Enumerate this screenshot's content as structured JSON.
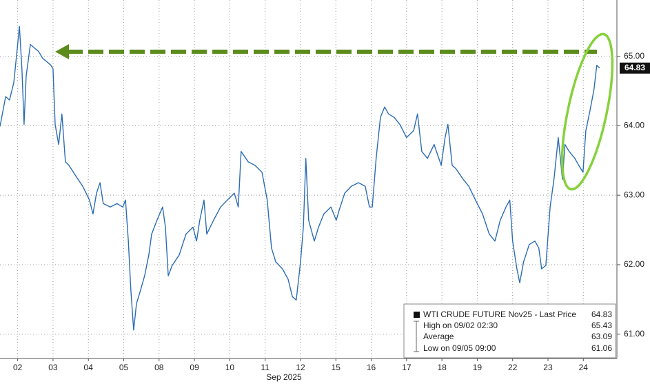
{
  "chart_data": {
    "type": "line",
    "xlabel": "Sep 2025",
    "xlim": [
      0,
      17.45
    ],
    "ylim": [
      60.65,
      65.81
    ],
    "grid": true,
    "xticks": [
      {
        "value": 0.5,
        "label": "02"
      },
      {
        "value": 1.5,
        "label": "03"
      },
      {
        "value": 2.5,
        "label": "04"
      },
      {
        "value": 3.5,
        "label": "05"
      },
      {
        "value": 4.5,
        "label": "08"
      },
      {
        "value": 5.5,
        "label": "09"
      },
      {
        "value": 6.5,
        "label": "10"
      },
      {
        "value": 7.5,
        "label": "11"
      },
      {
        "value": 8.5,
        "label": "12"
      },
      {
        "value": 9.5,
        "label": "15"
      },
      {
        "value": 10.5,
        "label": "16"
      },
      {
        "value": 11.5,
        "label": "17"
      },
      {
        "value": 12.5,
        "label": "18"
      },
      {
        "value": 13.5,
        "label": "19"
      },
      {
        "value": 14.5,
        "label": "22"
      },
      {
        "value": 15.5,
        "label": "23"
      },
      {
        "value": 16.5,
        "label": "24"
      }
    ],
    "yticks": [
      {
        "value": 61,
        "label": "61.00"
      },
      {
        "value": 62,
        "label": "62.00"
      },
      {
        "value": 63,
        "label": "63.00"
      },
      {
        "value": 64,
        "label": "64.00"
      },
      {
        "value": 65,
        "label": "65.00"
      }
    ],
    "series": [
      {
        "name": "WTI CRUDE FUTURE Nov25 - Last Price",
        "color": "#2b6cb3",
        "x": [
          0.0,
          0.16,
          0.27,
          0.39,
          0.47,
          0.55,
          0.62,
          0.68,
          0.74,
          0.86,
          0.97,
          1.09,
          1.21,
          1.33,
          1.44,
          1.5,
          1.56,
          1.66,
          1.75,
          1.85,
          1.95,
          2.14,
          2.34,
          2.53,
          2.63,
          2.73,
          2.83,
          2.92,
          3.12,
          3.31,
          3.47,
          3.55,
          3.63,
          3.7,
          3.78,
          3.86,
          3.98,
          4.09,
          4.21,
          4.29,
          4.44,
          4.6,
          4.68,
          4.76,
          4.87,
          5.07,
          5.26,
          5.46,
          5.56,
          5.65,
          5.77,
          5.85,
          6.04,
          6.24,
          6.43,
          6.63,
          6.74,
          6.82,
          7.02,
          7.21,
          7.41,
          7.56,
          7.68,
          7.8,
          7.99,
          8.15,
          8.27,
          8.38,
          8.5,
          8.58,
          8.65,
          8.73,
          8.89,
          9.01,
          9.16,
          9.36,
          9.51,
          9.59,
          9.75,
          9.94,
          10.14,
          10.33,
          10.45,
          10.53,
          10.64,
          10.76,
          10.88,
          10.99,
          11.15,
          11.31,
          11.5,
          11.7,
          11.81,
          11.93,
          12.09,
          12.28,
          12.48,
          12.59,
          12.67,
          12.79,
          12.9,
          13.1,
          13.26,
          13.45,
          13.65,
          13.84,
          14.0,
          14.15,
          14.31,
          14.42,
          14.5,
          14.62,
          14.7,
          14.81,
          14.97,
          15.13,
          15.24,
          15.32,
          15.44,
          15.56,
          15.67,
          15.79,
          15.91,
          15.98,
          16.1,
          16.26,
          16.37,
          16.49,
          16.57,
          16.69,
          16.8,
          16.88,
          16.96
        ],
        "values": [
          63.99,
          64.42,
          64.37,
          64.62,
          65.02,
          65.43,
          64.82,
          64.02,
          64.72,
          65.17,
          65.12,
          65.07,
          64.97,
          64.92,
          64.87,
          64.82,
          64.02,
          63.73,
          64.17,
          63.48,
          63.43,
          63.28,
          63.13,
          62.93,
          62.73,
          63.03,
          63.18,
          62.88,
          62.83,
          62.88,
          62.83,
          62.93,
          62.34,
          61.64,
          61.06,
          61.44,
          61.64,
          61.84,
          62.14,
          62.44,
          62.64,
          62.83,
          62.54,
          61.84,
          61.99,
          62.14,
          62.44,
          62.54,
          62.34,
          62.64,
          62.93,
          62.44,
          62.64,
          62.83,
          62.93,
          63.03,
          62.83,
          63.63,
          63.48,
          63.43,
          63.33,
          62.93,
          62.24,
          62.04,
          61.94,
          61.79,
          61.54,
          61.49,
          62.04,
          62.54,
          63.53,
          62.64,
          62.34,
          62.54,
          62.73,
          62.83,
          62.64,
          62.78,
          63.03,
          63.13,
          63.18,
          63.13,
          62.83,
          62.83,
          63.53,
          64.12,
          64.27,
          64.17,
          64.12,
          64.02,
          63.83,
          63.93,
          64.17,
          63.63,
          63.53,
          63.73,
          63.43,
          63.83,
          64.02,
          63.43,
          63.38,
          63.23,
          63.13,
          62.93,
          62.73,
          62.44,
          62.34,
          62.64,
          62.83,
          62.93,
          62.34,
          61.94,
          61.74,
          62.04,
          62.29,
          62.34,
          62.24,
          61.94,
          61.99,
          62.83,
          63.23,
          63.83,
          63.23,
          63.73,
          63.63,
          63.53,
          63.43,
          63.33,
          63.93,
          64.22,
          64.52,
          64.87,
          64.83
        ]
      }
    ],
    "last_price": 64.83,
    "stats": [
      {
        "label": "High on 09/02 02:30",
        "value": 65.43
      },
      {
        "label": "Average",
        "value": 63.09
      },
      {
        "label": "Low on 09/05 09:00",
        "value": 61.06
      }
    ]
  }
}
